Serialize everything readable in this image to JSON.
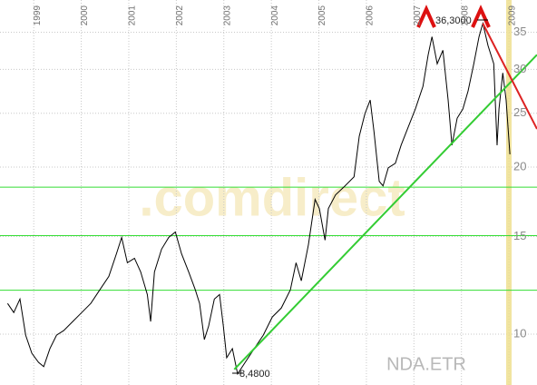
{
  "chart_data": {
    "type": "line",
    "symbol": "NDA.ETR",
    "watermark": ".comdirect",
    "annotations": [
      "36,3000",
      "8,4800"
    ],
    "log_scale": true,
    "grid": true,
    "color": "#000000",
    "xlim": [
      1998.29,
      2009.59
    ],
    "xticks": [
      {
        "value": 1999,
        "label": "1999"
      },
      {
        "value": 2000,
        "label": "2000"
      },
      {
        "value": 2001,
        "label": "2001"
      },
      {
        "value": 2002,
        "label": "2002"
      },
      {
        "value": 2003,
        "label": "2003"
      },
      {
        "value": 2004,
        "label": "2004"
      },
      {
        "value": 2005,
        "label": "2005"
      },
      {
        "value": 2006,
        "label": "2006"
      },
      {
        "value": 2007,
        "label": "2007"
      },
      {
        "value": 2008,
        "label": "2008"
      },
      {
        "value": 2009,
        "label": "2009"
      }
    ],
    "ylim": [
      8.1,
      40
    ],
    "yticks": [
      10,
      15,
      20,
      25,
      30,
      35
    ],
    "x": [
      1998.45,
      1998.58,
      1998.71,
      1998.83,
      1998.96,
      1999.1,
      1999.21,
      1999.34,
      1999.48,
      1999.63,
      1999.82,
      2000.01,
      2000.2,
      2000.39,
      2000.58,
      2000.74,
      2000.85,
      2000.97,
      2001.12,
      2001.25,
      2001.39,
      2001.46,
      2001.54,
      2001.69,
      2001.84,
      2001.98,
      2002.11,
      2002.26,
      2002.4,
      2002.49,
      2002.59,
      2002.68,
      2002.8,
      2002.91,
      2002.99,
      2003.06,
      2003.18,
      2003.29,
      2003.45,
      2003.64,
      2003.83,
      2004.02,
      2004.21,
      2004.4,
      2004.52,
      2004.63,
      2004.78,
      2004.92,
      2005.01,
      2005.13,
      2005.2,
      2005.35,
      2005.55,
      2005.74,
      2005.85,
      2005.97,
      2006.08,
      2006.16,
      2006.27,
      2006.35,
      2006.46,
      2006.61,
      2006.73,
      2006.88,
      2007.03,
      2007.19,
      2007.3,
      2007.38,
      2007.49,
      2007.61,
      2007.72,
      2007.8,
      2007.91,
      2008.03,
      2008.14,
      2008.26,
      2008.37,
      2008.45,
      2008.56,
      2008.68,
      2008.75,
      2008.79,
      2008.87,
      2008.94,
      2009.02
    ],
    "values": [
      11.36,
      10.94,
      11.57,
      9.96,
      9.24,
      8.9,
      8.74,
      9.42,
      9.96,
      10.15,
      10.54,
      10.94,
      11.36,
      12.02,
      12.71,
      13.96,
      14.94,
      13.45,
      13.7,
      12.95,
      11.79,
      10.54,
      12.95,
      14.23,
      14.94,
      15.28,
      13.96,
      12.95,
      12.02,
      11.36,
      9.78,
      10.34,
      11.57,
      11.79,
      10.34,
      9.07,
      9.42,
      8.48,
      8.9,
      9.42,
      9.96,
      10.74,
      11.15,
      12.02,
      13.45,
      12.48,
      14.5,
      17.49,
      16.84,
      14.77,
      16.84,
      17.82,
      18.5,
      19.21,
      22.74,
      24.97,
      26.41,
      23.17,
      18.85,
      18.5,
      19.94,
      20.32,
      21.9,
      23.61,
      25.45,
      27.95,
      31.87,
      34.35,
      30.7,
      32.47,
      26.41,
      21.9,
      24.5,
      25.45,
      27.43,
      30.7,
      34.35,
      36.3,
      33.09,
      30.7,
      21.9,
      25.45,
      29.56,
      26.41,
      21.09
    ],
    "hlines": [
      18.4,
      15.05,
      12.0
    ],
    "hline_color": "#33dd33",
    "trendlines": [
      {
        "color": "#33cc33",
        "x": [
          2003.22,
          2009.59
        ],
        "y": [
          8.64,
          31.87
        ]
      },
      {
        "color": "#dd2222",
        "x": [
          2008.45,
          2009.59
        ],
        "y": [
          36.3,
          23.43
        ]
      }
    ]
  }
}
